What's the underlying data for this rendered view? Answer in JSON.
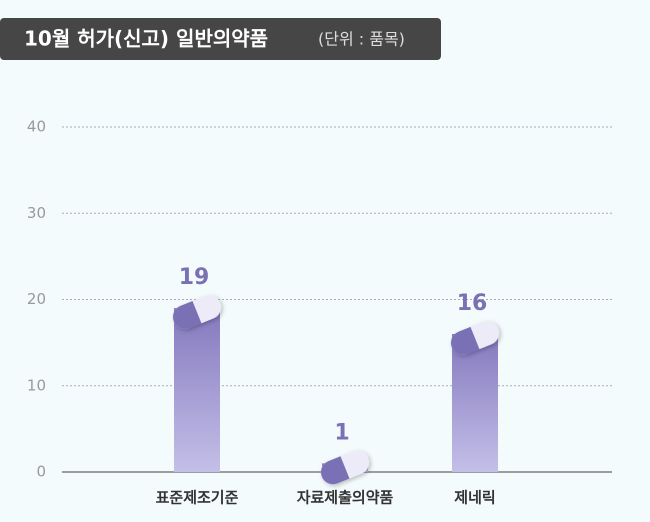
{
  "chart_data": {
    "type": "bar",
    "title": "10월 허가(신고) 일반의약품",
    "subtitle": "(단위 : 품목)",
    "categories": [
      "표준제조기준",
      "자료제출의약품",
      "제네릭"
    ],
    "values": [
      19,
      1,
      16
    ],
    "color": "#8a7fc0",
    "ylim": [
      0,
      40
    ],
    "yticks": [
      0,
      10,
      20,
      30,
      40
    ],
    "grid": true
  }
}
